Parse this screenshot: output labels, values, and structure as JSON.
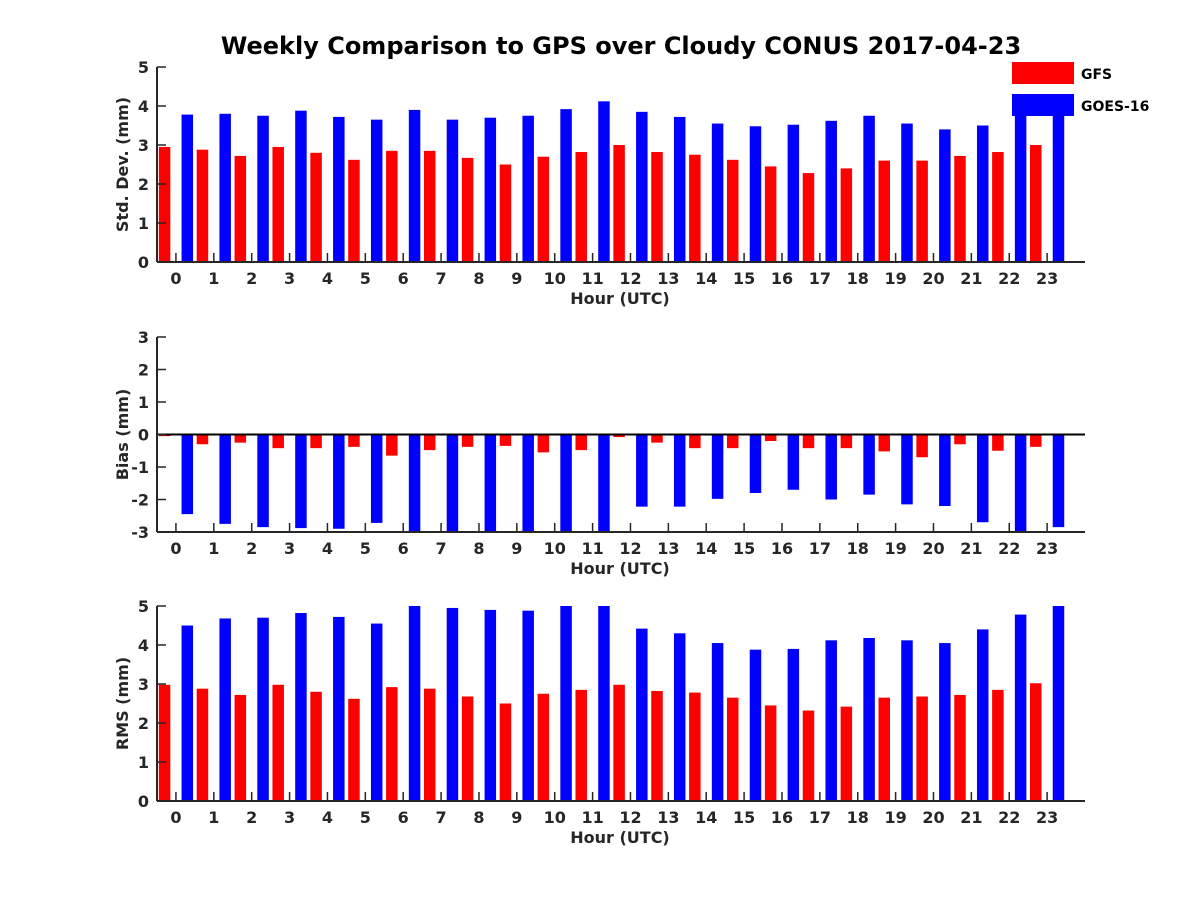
{
  "title": "Weekly Comparison to GPS over Cloudy CONUS 2017-04-23",
  "colors": {
    "gfs": "#ff0000",
    "goes": "#0000ff",
    "axis": "#262626"
  },
  "legend": {
    "placement": "top-right",
    "items": [
      "GFS",
      "GOES-16"
    ]
  },
  "chart_data": [
    {
      "type": "bar",
      "ylabel": "Std. Dev. (mm)",
      "xlabel": "Hour (UTC)",
      "ylim": [
        0,
        5
      ],
      "yticks": [
        "0",
        "1",
        "2",
        "3",
        "4",
        "5"
      ],
      "categories": [
        "0",
        "1",
        "2",
        "3",
        "4",
        "5",
        "6",
        "7",
        "8",
        "9",
        "10",
        "11",
        "12",
        "13",
        "14",
        "15",
        "16",
        "17",
        "18",
        "19",
        "20",
        "21",
        "22",
        "23"
      ],
      "series": [
        {
          "name": "GFS",
          "values": [
            2.95,
            2.88,
            2.72,
            2.95,
            2.8,
            2.62,
            2.85,
            2.85,
            2.67,
            2.5,
            2.7,
            2.82,
            3.0,
            2.82,
            2.75,
            2.62,
            2.45,
            2.28,
            2.4,
            2.6,
            2.6,
            2.72,
            2.82,
            3.0
          ]
        },
        {
          "name": "GOES-16",
          "values": [
            3.78,
            3.8,
            3.75,
            3.88,
            3.72,
            3.65,
            3.9,
            3.65,
            3.7,
            3.75,
            3.92,
            4.12,
            3.85,
            3.72,
            3.55,
            3.48,
            3.52,
            3.62,
            3.75,
            3.55,
            3.4,
            3.5,
            3.75,
            4.0
          ]
        }
      ]
    },
    {
      "type": "bar",
      "ylabel": "Bias (mm)",
      "xlabel": "Hour (UTC)",
      "ylim": [
        -3,
        3
      ],
      "yticks": [
        "-3",
        "-2",
        "-1",
        "0",
        "1",
        "2",
        "3"
      ],
      "categories": [
        "0",
        "1",
        "2",
        "3",
        "4",
        "5",
        "6",
        "7",
        "8",
        "9",
        "10",
        "11",
        "12",
        "13",
        "14",
        "15",
        "16",
        "17",
        "18",
        "19",
        "20",
        "21",
        "22",
        "23"
      ],
      "series": [
        {
          "name": "GFS",
          "values": [
            -0.05,
            -0.3,
            -0.25,
            -0.42,
            -0.42,
            -0.38,
            -0.65,
            -0.48,
            -0.38,
            -0.35,
            -0.55,
            -0.48,
            -0.08,
            -0.25,
            -0.42,
            -0.42,
            -0.2,
            -0.42,
            -0.42,
            -0.52,
            -0.7,
            -0.3,
            -0.5,
            -0.38
          ]
        },
        {
          "name": "GOES-16",
          "values": [
            -2.45,
            -2.75,
            -2.85,
            -2.88,
            -2.9,
            -2.72,
            -3.0,
            -3.0,
            -3.0,
            -3.0,
            -3.0,
            -3.0,
            -2.22,
            -2.22,
            -1.98,
            -1.8,
            -1.7,
            -2.0,
            -1.85,
            -2.15,
            -2.2,
            -2.7,
            -2.98,
            -2.85
          ]
        }
      ]
    },
    {
      "type": "bar",
      "ylabel": "RMS (mm)",
      "xlabel": "Hour (UTC)",
      "ylim": [
        0,
        5
      ],
      "yticks": [
        "0",
        "1",
        "2",
        "3",
        "4",
        "5"
      ],
      "categories": [
        "0",
        "1",
        "2",
        "3",
        "4",
        "5",
        "6",
        "7",
        "8",
        "9",
        "10",
        "11",
        "12",
        "13",
        "14",
        "15",
        "16",
        "17",
        "18",
        "19",
        "20",
        "21",
        "22",
        "23"
      ],
      "series": [
        {
          "name": "GFS",
          "values": [
            2.98,
            2.88,
            2.72,
            2.98,
            2.8,
            2.62,
            2.92,
            2.88,
            2.68,
            2.5,
            2.75,
            2.85,
            2.98,
            2.82,
            2.78,
            2.65,
            2.45,
            2.32,
            2.42,
            2.65,
            2.68,
            2.72,
            2.85,
            3.02
          ]
        },
        {
          "name": "GOES-16",
          "values": [
            4.5,
            4.68,
            4.7,
            4.82,
            4.72,
            4.55,
            5.0,
            4.95,
            4.9,
            4.88,
            5.0,
            5.0,
            4.42,
            4.3,
            4.05,
            3.88,
            3.9,
            4.12,
            4.18,
            4.12,
            4.05,
            4.4,
            4.78,
            5.0
          ]
        }
      ]
    }
  ]
}
